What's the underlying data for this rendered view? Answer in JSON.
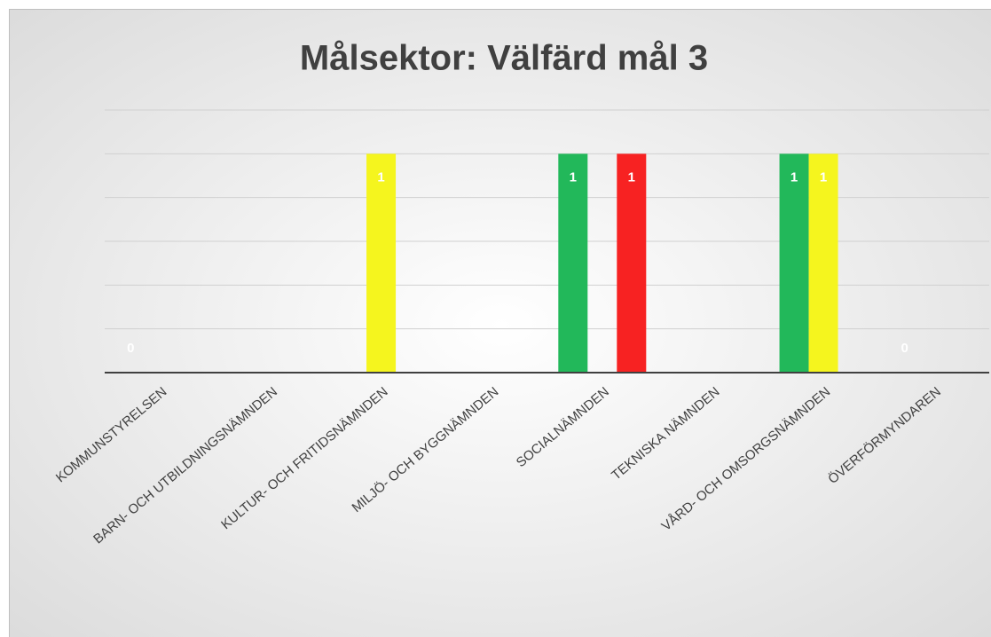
{
  "chart_data": {
    "type": "bar",
    "title": "Målsektor: Välfärd  mål 3",
    "categories": [
      "KOMMUNSTYRELSEN",
      "BARN- OCH UTBILDNINGSNÄMNDEN",
      "KULTUR- OCH FRITIDSNÄMNDEN",
      "MILJÖ- OCH BYGGNÄMNDEN",
      "SOCIALNÄMNDEN",
      "TEKNISKA NÄMNDEN",
      "VÅRD- OCH OMSORGSNÄMNDEN",
      "ÖVERFÖRMYNDAREN"
    ],
    "series": [
      {
        "color": "#22b85a",
        "values": [
          0,
          null,
          null,
          null,
          1,
          null,
          1,
          0
        ]
      },
      {
        "color": "#f5f51e",
        "values": [
          null,
          null,
          1,
          null,
          null,
          null,
          1,
          null
        ]
      },
      {
        "color": "#f72222",
        "values": [
          null,
          null,
          null,
          null,
          1,
          null,
          null,
          null
        ]
      }
    ],
    "ylim": [
      0,
      1.2
    ],
    "yticks": [
      0,
      0.2,
      0.4,
      0.6,
      0.8,
      1,
      1.2
    ],
    "grid": true
  }
}
